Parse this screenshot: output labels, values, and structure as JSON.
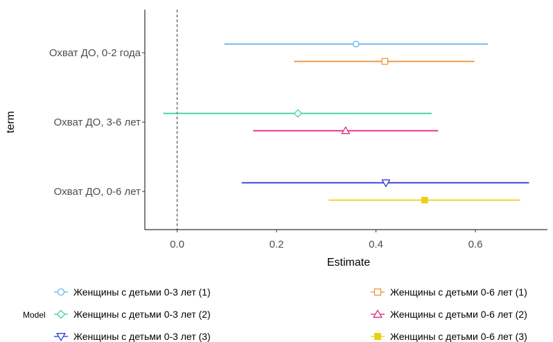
{
  "chart_data": {
    "type": "forest",
    "title": "",
    "xlabel": "Estimate",
    "ylabel": "term",
    "xlim": [
      -0.065,
      0.745
    ],
    "x_ticks": [
      0.0,
      0.2,
      0.4,
      0.6
    ],
    "x_tick_labels": [
      "0.0",
      "0.2",
      "0.4",
      "0.6"
    ],
    "reference_line_x": 0,
    "grid": false,
    "terms": [
      "Охват ДО, 0-2 года",
      "Охват ДО, 3-6 лет",
      "Охват ДО, 0-6 лет"
    ],
    "legend_title": "Model",
    "legend_position": "bottom",
    "series": [
      {
        "name": "Женщины с детьми 0-3 лет (1)",
        "color": "#56b4e9",
        "shape": "circle-open",
        "term": "Охват ДО, 0-2 года",
        "estimate": 0.36,
        "low": 0.095,
        "high": 0.625
      },
      {
        "name": "Женщины с детьми 0-6 лет (1)",
        "color": "#f28c28",
        "shape": "square-open",
        "term": "Охват ДО, 0-2 года",
        "estimate": 0.418,
        "low": 0.235,
        "high": 0.598
      },
      {
        "name": "Женщины с детьми 0-3 лет (2)",
        "color": "#2ecf9a",
        "shape": "diamond-open",
        "term": "Охват ДО, 3-6 лет",
        "estimate": 0.243,
        "low": -0.028,
        "high": 0.512
      },
      {
        "name": "Женщины с детьми 0-6 лет (2)",
        "color": "#e6197d",
        "shape": "triangle-up-open",
        "term": "Охват ДО, 3-6 лет",
        "estimate": 0.339,
        "low": 0.153,
        "high": 0.525
      },
      {
        "name": "Женщины с детьми 0-3 лет (3)",
        "color": "#1f2fd6",
        "shape": "triangle-down-open",
        "term": "Охват ДО, 0-6 лет",
        "estimate": 0.42,
        "low": 0.13,
        "high": 0.708
      },
      {
        "name": "Женщины с детьми 0-6 лет (3)",
        "color": "#e8d20f",
        "shape": "square-filled",
        "term": "Охват ДО, 0-6 лет",
        "estimate": 0.498,
        "low": 0.305,
        "high": 0.69
      }
    ]
  }
}
